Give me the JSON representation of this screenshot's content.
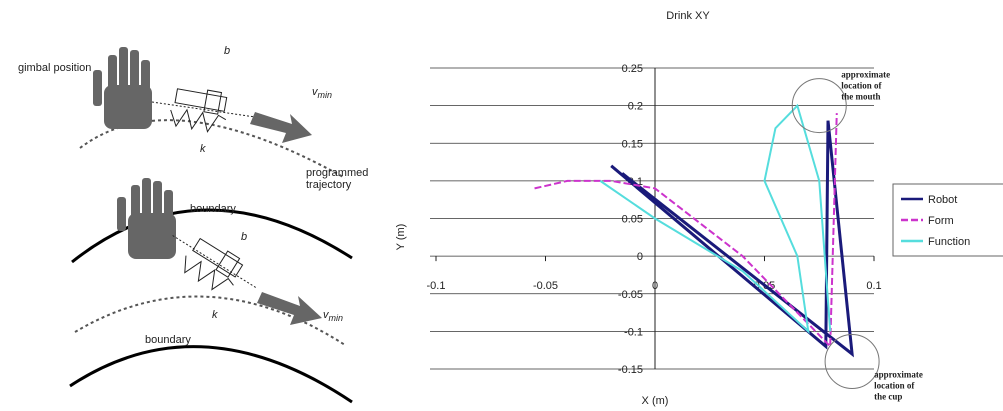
{
  "diagram": {
    "top": {
      "gimbal": "gimbal position",
      "damper": "b",
      "spring": "k",
      "velocity": {
        "symbol": "v",
        "sub": "min"
      },
      "trajectory": [
        "programmed",
        "trajectory"
      ]
    },
    "bottom": {
      "boundary_upper": "boundary",
      "damper": "b",
      "spring": "k",
      "velocity": {
        "symbol": "v",
        "sub": "min"
      },
      "boundary_lower": "boundary"
    }
  },
  "chart_data": {
    "type": "line",
    "title": "Drink XY",
    "x_label": "X (m)",
    "y_label": "Y (m)",
    "xlim": [
      -0.1,
      0.1
    ],
    "ylim": [
      -0.15,
      0.25
    ],
    "xticks": [
      -0.1,
      -0.05,
      0,
      0.05,
      0.1
    ],
    "yticks": [
      0.25,
      0.2,
      0.15,
      0.1,
      0.05,
      0,
      -0.05,
      -0.1,
      -0.15
    ],
    "grid": true,
    "legend": "right",
    "series": [
      {
        "name": "Robot",
        "color": "#1a1a7a",
        "x": [
          -0.02,
          0.078,
          0.079,
          0.09,
          -0.015
        ],
        "values": [
          0.12,
          -0.12,
          0.18,
          -0.13,
          0.11
        ]
      },
      {
        "name": "Form",
        "color": "#cc33cc",
        "x": [
          -0.055,
          -0.04,
          -0.02,
          0.0,
          0.04,
          0.08,
          0.083
        ],
        "values": [
          0.09,
          0.1,
          0.1,
          0.09,
          0.0,
          -0.12,
          0.19
        ]
      },
      {
        "name": "Function",
        "color": "#55dddd",
        "x": [
          -0.025,
          0.0,
          0.04,
          0.07,
          0.065,
          0.05,
          0.055,
          0.065,
          0.075,
          0.08
        ],
        "values": [
          0.1,
          0.05,
          -0.02,
          -0.1,
          0.0,
          0.1,
          0.17,
          0.2,
          0.1,
          -0.1
        ]
      }
    ],
    "annotations": [
      {
        "lines": [
          "approximate",
          "location of",
          "the mouth"
        ],
        "x": 0.075,
        "y": 0.2
      },
      {
        "lines": [
          "approximate",
          "location of",
          "the cup"
        ],
        "x": 0.09,
        "y": -0.14
      }
    ]
  }
}
